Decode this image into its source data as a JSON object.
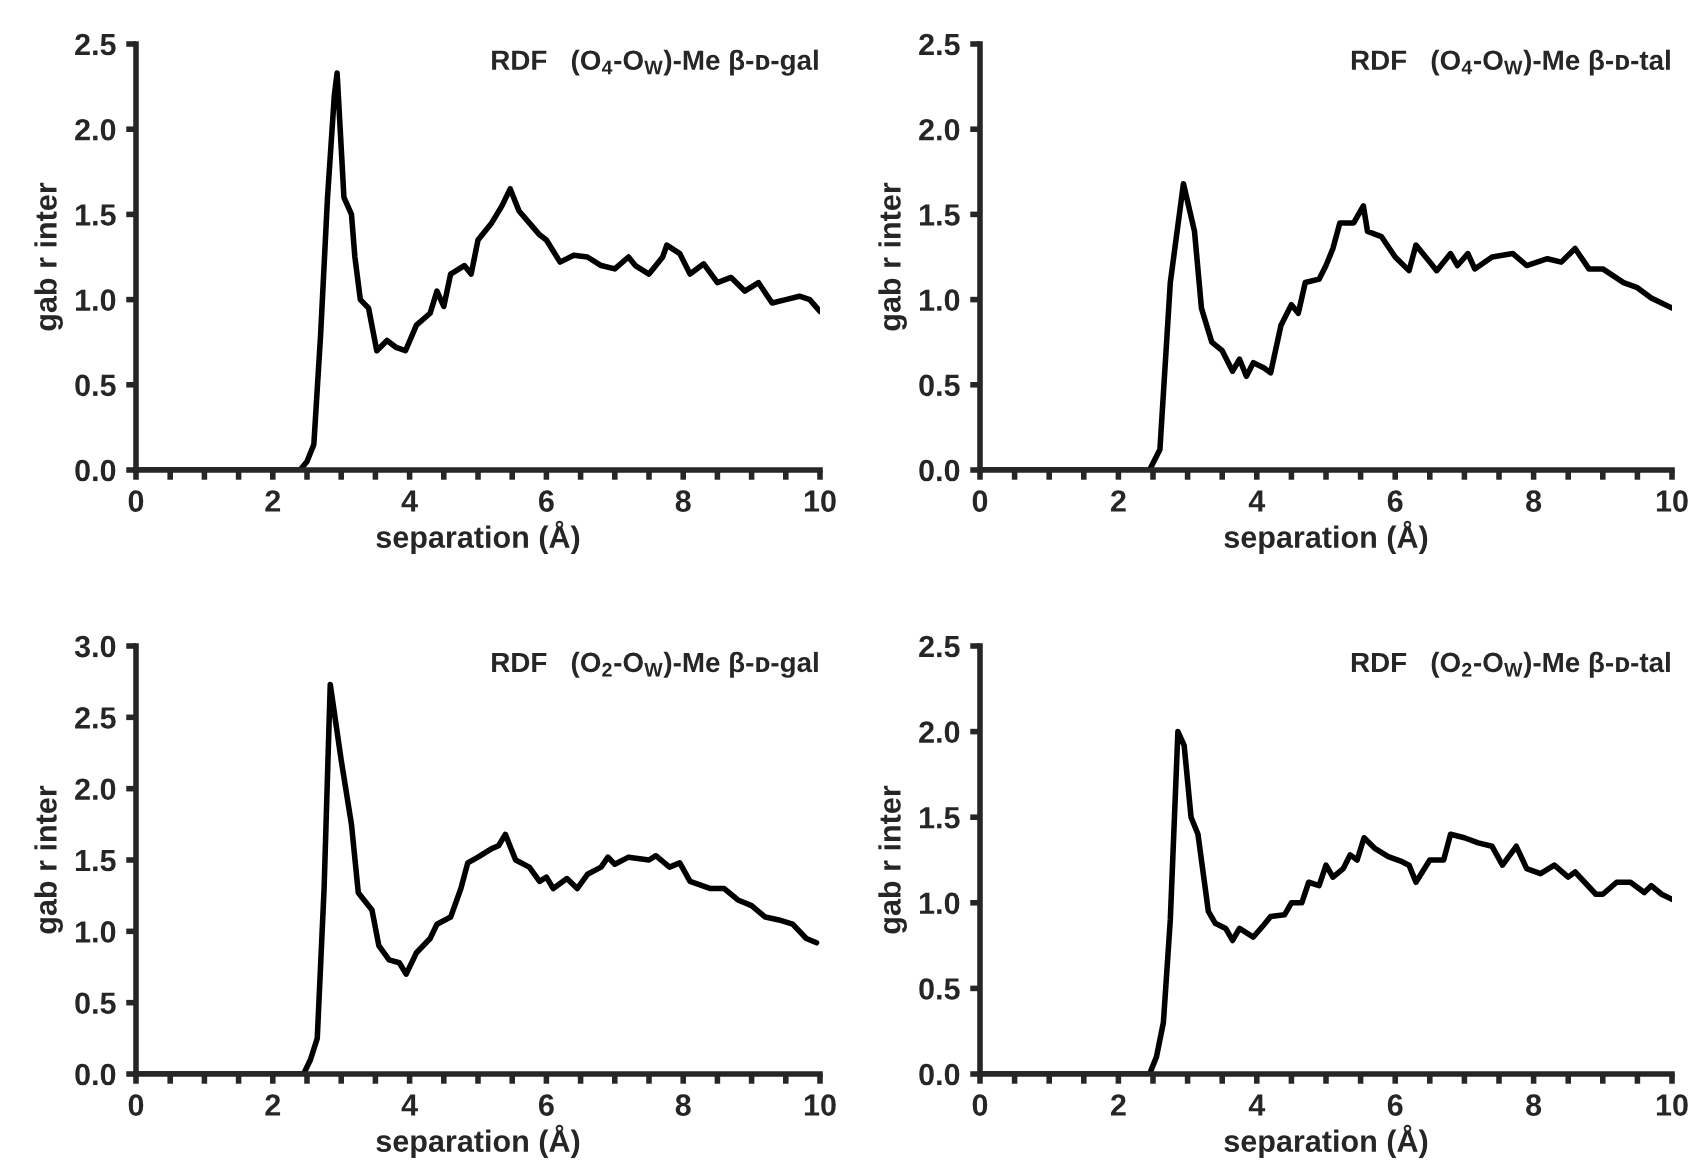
{
  "chart_data": [
    {
      "type": "line",
      "title": "RDF   (O$_{4}$-O$_{W}$)-Me β-ᴅ-gal",
      "xlabel": "separation (Å)",
      "ylabel": "gab r inter",
      "xlim": [
        0,
        10
      ],
      "ylim": [
        0,
        2.5
      ],
      "xticks": [
        0,
        {
          "value": 0.5,
          "label": null
        },
        {
          "value": 1,
          "label": null
        },
        {
          "value": 1.5,
          "label": null
        },
        2,
        {
          "value": 2.5,
          "label": null
        },
        {
          "value": 3,
          "label": null
        },
        {
          "value": 3.5,
          "label": null
        },
        4,
        {
          "value": 4.5,
          "label": null
        },
        {
          "value": 5,
          "label": null
        },
        {
          "value": 5.5,
          "label": null
        },
        6,
        {
          "value": 6.5,
          "label": null
        },
        {
          "value": 7,
          "label": null
        },
        {
          "value": 7.5,
          "label": null
        },
        8,
        {
          "value": 8.5,
          "label": null
        },
        {
          "value": 9,
          "label": null
        },
        {
          "value": 9.5,
          "label": null
        },
        10
      ],
      "yticks": [
        {
          "value": 0,
          "label": "0.0"
        },
        {
          "value": 0.5,
          "label": "0.5"
        },
        {
          "value": 1,
          "label": "1.0"
        },
        {
          "value": 1.5,
          "label": "1.5"
        },
        {
          "value": 2,
          "label": "2.0"
        },
        {
          "value": 2.5,
          "label": "2.5"
        }
      ],
      "grid": false,
      "legend": false,
      "series": [
        {
          "color": "#000000",
          "x": [
            0,
            2.4,
            2.5,
            2.6,
            2.7,
            2.8,
            2.9,
            2.94,
            3.04,
            3.15,
            3.2,
            3.28,
            3.4,
            3.52,
            3.67,
            3.8,
            3.94,
            4.1,
            4.3,
            4.4,
            4.5,
            4.6,
            4.8,
            4.9,
            5.0,
            5.2,
            5.35,
            5.47,
            5.6,
            5.75,
            5.9,
            6.0,
            6.2,
            6.4,
            6.6,
            6.8,
            7.0,
            7.2,
            7.3,
            7.5,
            7.7,
            7.76,
            7.95,
            8.1,
            8.3,
            8.5,
            8.7,
            8.9,
            9.1,
            9.3,
            9.5,
            9.7,
            9.85,
            10
          ],
          "values": [
            0,
            0,
            0.05,
            0.15,
            0.8,
            1.6,
            2.2,
            2.33,
            1.6,
            1.5,
            1.25,
            1.0,
            0.95,
            0.7,
            0.76,
            0.72,
            0.7,
            0.85,
            0.92,
            1.05,
            0.96,
            1.15,
            1.2,
            1.15,
            1.35,
            1.45,
            1.55,
            1.65,
            1.52,
            1.45,
            1.38,
            1.35,
            1.22,
            1.26,
            1.25,
            1.2,
            1.18,
            1.25,
            1.2,
            1.15,
            1.25,
            1.32,
            1.27,
            1.15,
            1.21,
            1.1,
            1.13,
            1.05,
            1.1,
            0.98,
            1.0,
            1.02,
            1.0,
            0.93
          ]
        }
      ]
    },
    {
      "type": "line",
      "title": "RDF   (O$_{4}$-O$_{W}$)-Me β-ᴅ-tal",
      "xlabel": "separation (Å)",
      "ylabel": "gab r inter",
      "xlim": [
        0,
        10
      ],
      "ylim": [
        0,
        2.5
      ],
      "xticks": [
        0,
        {
          "value": 0.5,
          "label": null
        },
        {
          "value": 1,
          "label": null
        },
        {
          "value": 1.5,
          "label": null
        },
        2,
        {
          "value": 2.5,
          "label": null
        },
        {
          "value": 3,
          "label": null
        },
        {
          "value": 3.5,
          "label": null
        },
        4,
        {
          "value": 4.5,
          "label": null
        },
        {
          "value": 5,
          "label": null
        },
        {
          "value": 5.5,
          "label": null
        },
        6,
        {
          "value": 6.5,
          "label": null
        },
        {
          "value": 7,
          "label": null
        },
        {
          "value": 7.5,
          "label": null
        },
        8,
        {
          "value": 8.5,
          "label": null
        },
        {
          "value": 9,
          "label": null
        },
        {
          "value": 9.5,
          "label": null
        },
        10
      ],
      "yticks": [
        {
          "value": 0,
          "label": "0.0"
        },
        {
          "value": 0.5,
          "label": "0.5"
        },
        {
          "value": 1,
          "label": "1.0"
        },
        {
          "value": 1.5,
          "label": "1.5"
        },
        {
          "value": 2,
          "label": "2.0"
        },
        {
          "value": 2.5,
          "label": "2.5"
        }
      ],
      "grid": false,
      "legend": false,
      "series": [
        {
          "color": "#000000",
          "x": [
            0,
            2.45,
            2.6,
            2.75,
            2.94,
            3.1,
            3.2,
            3.35,
            3.5,
            3.65,
            3.75,
            3.85,
            3.95,
            4.1,
            4.2,
            4.35,
            4.5,
            4.6,
            4.7,
            4.9,
            5.0,
            5.1,
            5.2,
            5.4,
            5.54,
            5.6,
            5.8,
            6.0,
            6.2,
            6.3,
            6.5,
            6.6,
            6.8,
            6.9,
            7.05,
            7.15,
            7.4,
            7.7,
            7.9,
            8.2,
            8.4,
            8.6,
            8.8,
            9.0,
            9.3,
            9.5,
            9.7,
            10
          ],
          "values": [
            0,
            0,
            0.12,
            1.1,
            1.68,
            1.4,
            0.95,
            0.75,
            0.7,
            0.58,
            0.65,
            0.55,
            0.63,
            0.6,
            0.57,
            0.85,
            0.97,
            0.92,
            1.1,
            1.12,
            1.2,
            1.3,
            1.45,
            1.45,
            1.55,
            1.4,
            1.37,
            1.25,
            1.17,
            1.32,
            1.22,
            1.17,
            1.27,
            1.2,
            1.27,
            1.18,
            1.25,
            1.27,
            1.2,
            1.24,
            1.22,
            1.3,
            1.18,
            1.18,
            1.1,
            1.07,
            1.01,
            0.95
          ]
        }
      ]
    },
    {
      "type": "line",
      "title": "RDF   (O$_{2}$-O$_{W}$)-Me β-ᴅ-gal",
      "xlabel": "separation (Å)",
      "ylabel": "gab r inter",
      "xlim": [
        0,
        10
      ],
      "ylim": [
        0,
        3.0
      ],
      "xticks": [
        0,
        {
          "value": 0.5,
          "label": null
        },
        {
          "value": 1,
          "label": null
        },
        {
          "value": 1.5,
          "label": null
        },
        2,
        {
          "value": 2.5,
          "label": null
        },
        {
          "value": 3,
          "label": null
        },
        {
          "value": 3.5,
          "label": null
        },
        4,
        {
          "value": 4.5,
          "label": null
        },
        {
          "value": 5,
          "label": null
        },
        {
          "value": 5.5,
          "label": null
        },
        6,
        {
          "value": 6.5,
          "label": null
        },
        {
          "value": 7,
          "label": null
        },
        {
          "value": 7.5,
          "label": null
        },
        8,
        {
          "value": 8.5,
          "label": null
        },
        {
          "value": 9,
          "label": null
        },
        {
          "value": 9.5,
          "label": null
        },
        10
      ],
      "yticks": [
        {
          "value": 0,
          "label": "0.0"
        },
        {
          "value": 0.5,
          "label": "0.5"
        },
        {
          "value": 1,
          "label": "1.0"
        },
        {
          "value": 1.5,
          "label": "1.5"
        },
        {
          "value": 2,
          "label": "2.0"
        },
        {
          "value": 2.5,
          "label": "2.5"
        },
        {
          "value": 3,
          "label": "3.0"
        }
      ],
      "grid": false,
      "legend": false,
      "series": [
        {
          "color": "#000000",
          "x": [
            0,
            2.45,
            2.55,
            2.65,
            2.75,
            2.84,
            3.0,
            3.15,
            3.25,
            3.45,
            3.55,
            3.7,
            3.85,
            3.95,
            4.1,
            4.3,
            4.4,
            4.6,
            4.75,
            4.85,
            5.0,
            5.2,
            5.3,
            5.4,
            5.55,
            5.75,
            5.9,
            6.0,
            6.1,
            6.3,
            6.45,
            6.6,
            6.8,
            6.9,
            7.0,
            7.2,
            7.5,
            7.6,
            7.8,
            7.95,
            8.1,
            8.4,
            8.6,
            8.8,
            9.0,
            9.2,
            9.4,
            9.6,
            9.8,
            9.95
          ],
          "values": [
            0,
            0,
            0.1,
            0.25,
            1.3,
            2.73,
            2.2,
            1.75,
            1.27,
            1.15,
            0.9,
            0.8,
            0.78,
            0.7,
            0.85,
            0.95,
            1.05,
            1.1,
            1.3,
            1.48,
            1.52,
            1.58,
            1.6,
            1.68,
            1.5,
            1.45,
            1.35,
            1.38,
            1.3,
            1.37,
            1.3,
            1.4,
            1.45,
            1.52,
            1.47,
            1.52,
            1.5,
            1.53,
            1.45,
            1.48,
            1.35,
            1.3,
            1.3,
            1.22,
            1.18,
            1.1,
            1.08,
            1.05,
            0.95,
            0.92
          ]
        }
      ]
    },
    {
      "type": "line",
      "title": "RDF   (O$_{2}$-O$_{W}$)-Me β-ᴅ-tal",
      "xlabel": "separation (Å)",
      "ylabel": "gab r inter",
      "xlim": [
        0,
        10
      ],
      "ylim": [
        0,
        2.5
      ],
      "xticks": [
        0,
        {
          "value": 0.5,
          "label": null
        },
        {
          "value": 1,
          "label": null
        },
        {
          "value": 1.5,
          "label": null
        },
        2,
        {
          "value": 2.5,
          "label": null
        },
        {
          "value": 3,
          "label": null
        },
        {
          "value": 3.5,
          "label": null
        },
        4,
        {
          "value": 4.5,
          "label": null
        },
        {
          "value": 5,
          "label": null
        },
        {
          "value": 5.5,
          "label": null
        },
        6,
        {
          "value": 6.5,
          "label": null
        },
        {
          "value": 7,
          "label": null
        },
        {
          "value": 7.5,
          "label": null
        },
        8,
        {
          "value": 8.5,
          "label": null
        },
        {
          "value": 9,
          "label": null
        },
        {
          "value": 9.5,
          "label": null
        },
        10
      ],
      "yticks": [
        {
          "value": 0,
          "label": "0.0"
        },
        {
          "value": 0.5,
          "label": "0.5"
        },
        {
          "value": 1,
          "label": "1.0"
        },
        {
          "value": 1.5,
          "label": "1.5"
        },
        {
          "value": 2,
          "label": "2.0"
        },
        {
          "value": 2.5,
          "label": "2.5"
        }
      ],
      "grid": false,
      "legend": false,
      "series": [
        {
          "color": "#000000",
          "x": [
            0,
            2.45,
            2.55,
            2.65,
            2.75,
            2.86,
            2.95,
            3.05,
            3.15,
            3.3,
            3.4,
            3.55,
            3.65,
            3.75,
            3.95,
            4.1,
            4.2,
            4.4,
            4.5,
            4.65,
            4.75,
            4.9,
            5.0,
            5.1,
            5.25,
            5.35,
            5.45,
            5.55,
            5.7,
            5.9,
            6.1,
            6.2,
            6.3,
            6.5,
            6.7,
            6.8,
            7.0,
            7.2,
            7.4,
            7.55,
            7.75,
            7.9,
            8.1,
            8.3,
            8.5,
            8.6,
            8.9,
            9.0,
            9.2,
            9.4,
            9.6,
            9.7,
            9.85,
            10
          ],
          "values": [
            0,
            0,
            0.1,
            0.3,
            0.9,
            2.0,
            1.92,
            1.5,
            1.4,
            0.95,
            0.88,
            0.85,
            0.78,
            0.85,
            0.8,
            0.87,
            0.92,
            0.93,
            1.0,
            1.0,
            1.12,
            1.1,
            1.22,
            1.15,
            1.2,
            1.28,
            1.25,
            1.38,
            1.32,
            1.27,
            1.24,
            1.22,
            1.12,
            1.25,
            1.25,
            1.4,
            1.38,
            1.35,
            1.33,
            1.22,
            1.33,
            1.2,
            1.17,
            1.22,
            1.15,
            1.18,
            1.05,
            1.05,
            1.12,
            1.12,
            1.06,
            1.1,
            1.05,
            1.02
          ]
        }
      ]
    }
  ]
}
